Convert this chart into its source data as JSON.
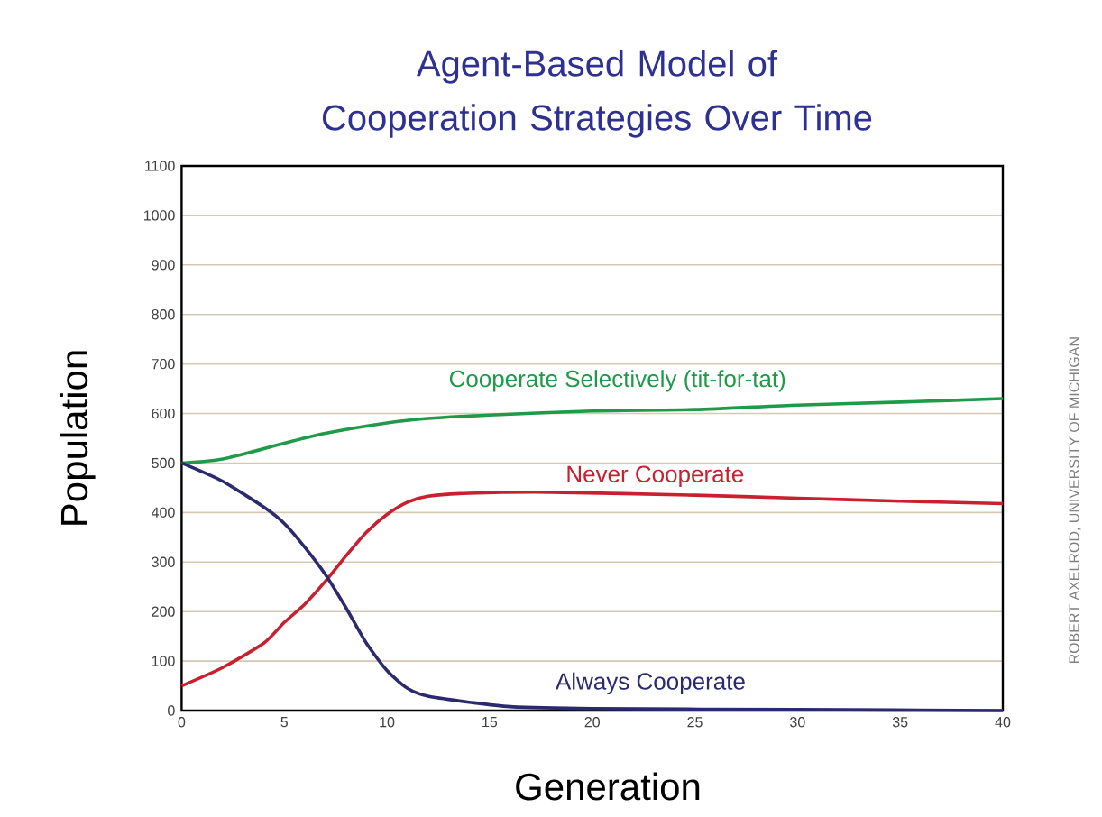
{
  "chart_data": {
    "type": "line",
    "title": "Agent-Based  Model of Cooperation Strategies Over Time",
    "xlabel": "Generation",
    "ylabel": "Population",
    "annotations": [
      "ROBERT AXELROD, UNIVERSITY OF MICHIGAN"
    ],
    "xlim": [
      0,
      40
    ],
    "ylim": [
      0,
      1100
    ],
    "xticks": [
      0,
      5,
      10,
      15,
      20,
      25,
      30,
      35,
      40
    ],
    "yticks": [
      0,
      100,
      200,
      300,
      400,
      500,
      600,
      700,
      800,
      900,
      1000,
      1100
    ],
    "grid": "y",
    "series": [
      {
        "name": "Cooperate Selectively (tit-for-tat)",
        "color": "#1f9a48",
        "x": [
          0,
          2,
          5,
          7,
          10,
          12,
          15,
          20,
          25,
          30,
          35,
          40
        ],
        "values": [
          500,
          508,
          540,
          560,
          581,
          590,
          597,
          605,
          608,
          617,
          623,
          630
        ]
      },
      {
        "name": "Never Cooperate",
        "color": "#c8202f",
        "x": [
          0,
          2,
          4,
          5,
          6,
          7,
          8,
          9,
          10,
          11,
          12,
          14,
          18,
          25,
          30,
          35,
          40
        ],
        "values": [
          50,
          87,
          136,
          178,
          215,
          261,
          312,
          360,
          396,
          421,
          433,
          439,
          441,
          435,
          429,
          423,
          418
        ]
      },
      {
        "name": "Always Cooperate",
        "color": "#2b2a6e",
        "x": [
          0,
          2,
          4,
          5,
          6,
          7,
          8,
          9,
          10,
          11,
          12,
          14,
          16,
          20,
          30,
          40
        ],
        "values": [
          500,
          463,
          411,
          378,
          330,
          275,
          208,
          136,
          81,
          45,
          29,
          17,
          8,
          4,
          2,
          0
        ]
      }
    ]
  }
}
